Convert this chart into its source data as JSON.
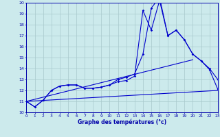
{
  "title": "Graphe des températures (°c)",
  "bg_color": "#cceaec",
  "line_color": "#0000cc",
  "grid_color": "#a8c8cc",
  "axis_color": "#0000aa",
  "xmin": 0,
  "xmax": 23,
  "ymin": 10,
  "ymax": 20,
  "series1_x": [
    0,
    1,
    2,
    3,
    4,
    5,
    6,
    7,
    8,
    9,
    10,
    11,
    12,
    13,
    14,
    15,
    16,
    17,
    18,
    19,
    20,
    21,
    22,
    23
  ],
  "series1_y": [
    11.0,
    10.5,
    11.1,
    12.0,
    12.4,
    12.5,
    12.5,
    12.2,
    12.2,
    12.3,
    12.5,
    13.0,
    13.2,
    13.5,
    15.3,
    19.5,
    20.5,
    17.0,
    17.5,
    16.6,
    15.3,
    14.7,
    14.0,
    13.0
  ],
  "series2_x": [
    0,
    1,
    2,
    3,
    4,
    5,
    6,
    7,
    8,
    9,
    10,
    11,
    12,
    13,
    14,
    15,
    16,
    17,
    18,
    19,
    20,
    21,
    22,
    23
  ],
  "series2_y": [
    11.0,
    10.5,
    11.1,
    12.0,
    12.4,
    12.5,
    12.5,
    12.2,
    12.2,
    12.3,
    12.5,
    12.8,
    12.9,
    13.3,
    19.3,
    17.5,
    20.2,
    17.0,
    17.5,
    16.6,
    15.3,
    14.7,
    13.9,
    12.1
  ],
  "trend1_x": [
    0,
    23
  ],
  "trend1_y": [
    11.0,
    12.0
  ],
  "trend2_x": [
    0,
    20
  ],
  "trend2_y": [
    11.0,
    14.8
  ]
}
